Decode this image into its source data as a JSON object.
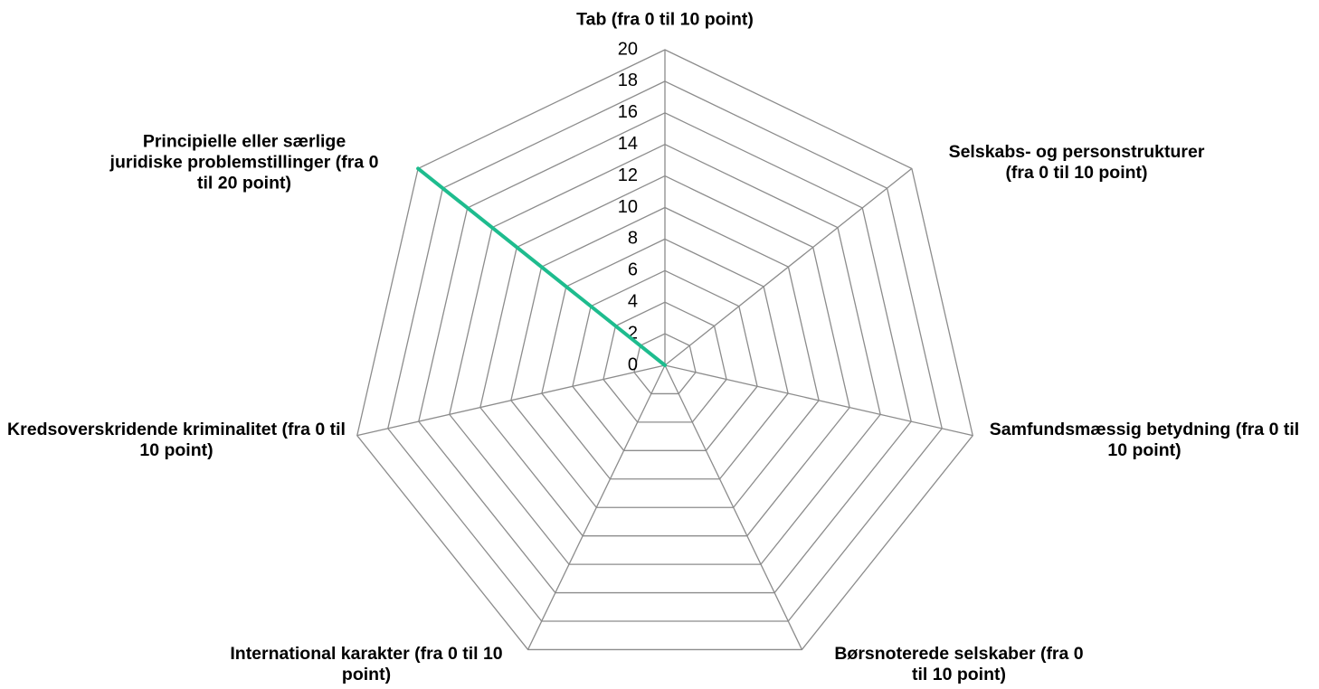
{
  "chart_data": {
    "type": "radar",
    "categories": [
      "Tab (fra 0 til 10 point)",
      "Selskabs- og personstrukturer (fra 0 til 10 point)",
      "Samfundsmæssig betydning (fra 0 til 10 point)",
      "Børsnoterede selskaber (fra 0 til 10 point)",
      "International karakter (fra 0 til 10 point)",
      "Kredsoverskridende kriminalitet (fra 0 til 10 point)",
      "Principielle eller særlige juridiske problemstillinger (fra 0 til 20 point)"
    ],
    "series": [
      {
        "color": "#1ebc8e",
        "values": [
          0,
          0,
          0,
          0,
          0,
          0,
          20
        ]
      }
    ],
    "ylim": [
      0,
      20
    ],
    "yticks": [
      0,
      2,
      4,
      6,
      8,
      10,
      12,
      14,
      16,
      18,
      20
    ],
    "grid": true
  }
}
